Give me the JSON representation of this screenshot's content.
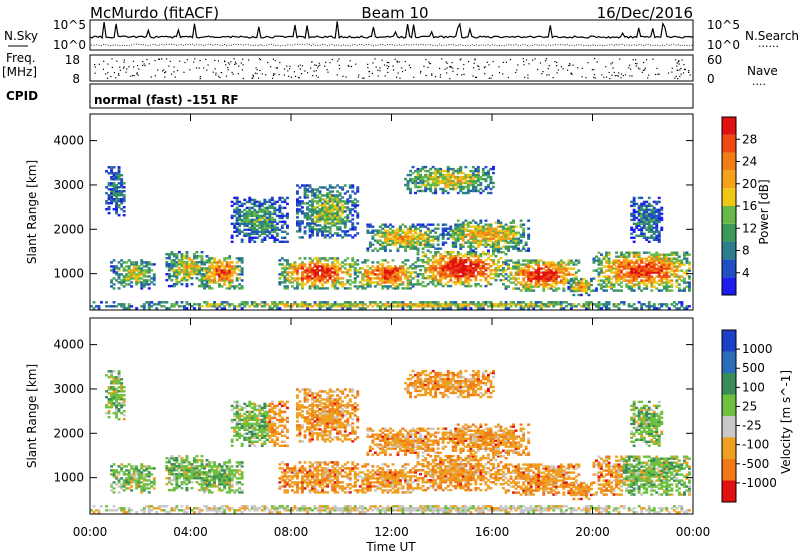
{
  "chart_data": {
    "type": "heatmap",
    "header": {
      "station": "McMurdo (fitACF)",
      "beam": "Beam 10",
      "date": "16/Dec/2016",
      "left_labels": {
        "nsky": "N.Sky",
        "freq": "Freq.",
        "freq_unit": "[MHz]",
        "cpid": "CPID"
      },
      "right_labels": {
        "nsearch": "N.Search",
        "nave": "Nave"
      },
      "noise_ticks": [
        "10^5",
        "10^0"
      ],
      "freq_ticks": [
        "18",
        "8"
      ],
      "nave_ticks": [
        "60",
        "0"
      ],
      "cpid_text": "normal (fast) -151 RF"
    },
    "x_axis": {
      "label": "Time UT",
      "ticks": [
        "00:00",
        "04:00",
        "08:00",
        "12:00",
        "16:00",
        "20:00",
        "00:00"
      ],
      "range_hours": [
        0,
        24
      ]
    },
    "y_axis": {
      "label": "Slant Range [km]",
      "ticks": [
        1000,
        2000,
        3000,
        4000
      ],
      "range": [
        180,
        4600
      ]
    },
    "power_panel": {
      "colorbar_label": "Power [dB]",
      "colorbar_ticks": [
        "4",
        "8",
        "12",
        "16",
        "20",
        "24",
        "28"
      ],
      "colors": [
        "#1c1cf0",
        "#1f4fc0",
        "#2e7d8c",
        "#3b9a5a",
        "#66b84a",
        "#f0c814",
        "#f5a21a",
        "#f07e14",
        "#f04a14",
        "#e01010"
      ]
    },
    "velocity_panel": {
      "colorbar_label": "Velocity [m s^-1]",
      "colorbar_ticks": [
        "1000",
        "500",
        "100",
        "25",
        "-25",
        "-100",
        "-500",
        "-1000"
      ],
      "colors": [
        "#1c3fc8",
        "#2a6cb8",
        "#3a8a5a",
        "#6ec040",
        "#c8c8c8",
        "#f0a020",
        "#f07818",
        "#e01010"
      ]
    },
    "echo_regions": [
      {
        "t0": 0.0,
        "t1": 24.0,
        "r0": 200,
        "r1": 350,
        "strength": 0.5
      },
      {
        "t0": 0.6,
        "t1": 1.4,
        "r0": 2300,
        "r1": 3400,
        "strength": 0.2
      },
      {
        "t0": 0.8,
        "t1": 2.6,
        "r0": 650,
        "r1": 1300,
        "strength": 0.45
      },
      {
        "t0": 3.0,
        "t1": 4.6,
        "r0": 700,
        "r1": 1500,
        "strength": 0.5
      },
      {
        "t0": 4.4,
        "t1": 6.0,
        "r0": 650,
        "r1": 1400,
        "strength": 0.7
      },
      {
        "t0": 5.6,
        "t1": 7.8,
        "r0": 1700,
        "r1": 2700,
        "strength": 0.3
      },
      {
        "t0": 7.5,
        "t1": 10.5,
        "r0": 650,
        "r1": 1350,
        "strength": 0.8
      },
      {
        "t0": 8.2,
        "t1": 10.6,
        "r0": 1800,
        "r1": 3000,
        "strength": 0.4
      },
      {
        "t0": 10.5,
        "t1": 13.0,
        "r0": 650,
        "r1": 1300,
        "strength": 0.75
      },
      {
        "t0": 11.0,
        "t1": 14.0,
        "r0": 1500,
        "r1": 2100,
        "strength": 0.55
      },
      {
        "t0": 12.5,
        "t1": 16.0,
        "r0": 2800,
        "r1": 3400,
        "strength": 0.5
      },
      {
        "t0": 13.0,
        "t1": 16.5,
        "r0": 700,
        "r1": 1500,
        "strength": 0.85
      },
      {
        "t0": 14.0,
        "t1": 17.5,
        "r0": 1500,
        "r1": 2200,
        "strength": 0.55
      },
      {
        "t0": 16.5,
        "t1": 19.5,
        "r0": 600,
        "r1": 1300,
        "strength": 0.8
      },
      {
        "t0": 19.0,
        "t1": 20.0,
        "r0": 500,
        "r1": 900,
        "strength": 0.6
      },
      {
        "t0": 20.0,
        "t1": 23.9,
        "r0": 600,
        "r1": 1500,
        "strength": 0.75
      },
      {
        "t0": 21.5,
        "t1": 22.8,
        "r0": 1700,
        "r1": 2700,
        "strength": 0.25
      }
    ]
  }
}
